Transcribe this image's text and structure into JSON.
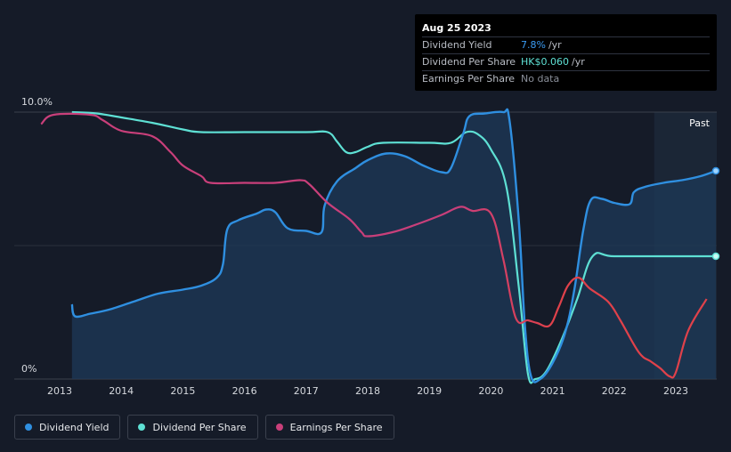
{
  "colors": {
    "background": "#151b28",
    "dividend_yield": "#2f8fe0",
    "dividend_per_share": "#5ee0d4",
    "earnings_per_share": "#c93f7a",
    "earnings_per_share_recent": "#e0414a",
    "grid": "#3a404d"
  },
  "tooltip": {
    "date": "Aug 25 2023",
    "rows": [
      {
        "name": "Dividend Yield",
        "value": "7.8%",
        "unit": "/yr",
        "color": "#3a9af0"
      },
      {
        "name": "Dividend Per Share",
        "value": "HK$0.060",
        "unit": "/yr",
        "color": "#5ee0d4"
      },
      {
        "name": "Earnings Per Share",
        "value": "No data",
        "unit": "",
        "color": "#8a8f99"
      }
    ]
  },
  "legend": [
    {
      "label": "Dividend Yield",
      "color": "#2f8fe0"
    },
    {
      "label": "Dividend Per Share",
      "color": "#5ee0d4"
    },
    {
      "label": "Earnings Per Share",
      "color": "#c93f7a"
    }
  ],
  "chart_data": {
    "type": "line",
    "title": "",
    "xlabel": "",
    "ylabel": "",
    "y_axis_labels": [
      "10.0%",
      "0%"
    ],
    "xlim": [
      2012.2,
      2023.65
    ],
    "ylim": [
      0,
      10
    ],
    "x_ticks": [
      2013,
      2014,
      2015,
      2016,
      2017,
      2018,
      2019,
      2020,
      2021,
      2022,
      2023
    ],
    "past_label": "Past",
    "past_region_start": 2022.65,
    "series": [
      {
        "name": "Dividend Yield",
        "unit": "%",
        "filled": true,
        "points": [
          [
            2013.2,
            2.8
          ],
          [
            2013.25,
            2.35
          ],
          [
            2013.5,
            2.45
          ],
          [
            2013.8,
            2.6
          ],
          [
            2014.2,
            2.9
          ],
          [
            2014.6,
            3.2
          ],
          [
            2015.0,
            3.35
          ],
          [
            2015.3,
            3.5
          ],
          [
            2015.55,
            3.8
          ],
          [
            2015.65,
            4.3
          ],
          [
            2015.72,
            5.6
          ],
          [
            2015.9,
            5.95
          ],
          [
            2016.2,
            6.2
          ],
          [
            2016.35,
            6.35
          ],
          [
            2016.5,
            6.25
          ],
          [
            2016.7,
            5.65
          ],
          [
            2017.0,
            5.55
          ],
          [
            2017.25,
            5.5
          ],
          [
            2017.3,
            6.5
          ],
          [
            2017.5,
            7.4
          ],
          [
            2017.8,
            7.9
          ],
          [
            2018.0,
            8.2
          ],
          [
            2018.3,
            8.45
          ],
          [
            2018.6,
            8.35
          ],
          [
            2018.9,
            8.0
          ],
          [
            2019.2,
            7.75
          ],
          [
            2019.35,
            7.9
          ],
          [
            2019.55,
            9.2
          ],
          [
            2019.65,
            9.85
          ],
          [
            2019.9,
            9.95
          ],
          [
            2020.2,
            10.0
          ],
          [
            2020.3,
            9.7
          ],
          [
            2020.45,
            6.0
          ],
          [
            2020.55,
            2.0
          ],
          [
            2020.65,
            0.1
          ],
          [
            2020.8,
            0.0
          ],
          [
            2021.0,
            0.6
          ],
          [
            2021.2,
            1.7
          ],
          [
            2021.35,
            3.3
          ],
          [
            2021.5,
            5.6
          ],
          [
            2021.62,
            6.7
          ],
          [
            2021.8,
            6.75
          ],
          [
            2022.0,
            6.6
          ],
          [
            2022.25,
            6.55
          ],
          [
            2022.32,
            7.0
          ],
          [
            2022.5,
            7.2
          ],
          [
            2022.8,
            7.35
          ],
          [
            2023.1,
            7.45
          ],
          [
            2023.4,
            7.6
          ],
          [
            2023.65,
            7.8
          ]
        ]
      },
      {
        "name": "Dividend Per Share",
        "unit": "HK$",
        "filled": false,
        "points": [
          [
            2013.2,
            10.0
          ],
          [
            2013.6,
            9.95
          ],
          [
            2014.0,
            9.8
          ],
          [
            2014.5,
            9.6
          ],
          [
            2015.0,
            9.35
          ],
          [
            2015.3,
            9.25
          ],
          [
            2016.0,
            9.25
          ],
          [
            2017.0,
            9.25
          ],
          [
            2017.35,
            9.25
          ],
          [
            2017.5,
            8.9
          ],
          [
            2017.65,
            8.5
          ],
          [
            2017.8,
            8.5
          ],
          [
            2018.0,
            8.7
          ],
          [
            2018.25,
            8.85
          ],
          [
            2019.0,
            8.85
          ],
          [
            2019.35,
            8.85
          ],
          [
            2019.6,
            9.25
          ],
          [
            2019.8,
            9.15
          ],
          [
            2020.0,
            8.6
          ],
          [
            2020.25,
            7.2
          ],
          [
            2020.45,
            3.5
          ],
          [
            2020.6,
            0.2
          ],
          [
            2020.72,
            0.0
          ],
          [
            2020.9,
            0.3
          ],
          [
            2021.15,
            1.5
          ],
          [
            2021.4,
            3.0
          ],
          [
            2021.65,
            4.6
          ],
          [
            2022.0,
            4.6
          ],
          [
            2023.0,
            4.6
          ],
          [
            2023.65,
            4.6
          ]
        ]
      },
      {
        "name": "Earnings Per Share",
        "unit": "HK$",
        "filled": false,
        "points": [
          [
            2012.7,
            9.55
          ],
          [
            2012.9,
            9.9
          ],
          [
            2013.5,
            9.9
          ],
          [
            2013.7,
            9.7
          ],
          [
            2014.0,
            9.3
          ],
          [
            2014.5,
            9.1
          ],
          [
            2014.8,
            8.5
          ],
          [
            2015.0,
            8.0
          ],
          [
            2015.3,
            7.6
          ],
          [
            2015.45,
            7.35
          ],
          [
            2016.0,
            7.35
          ],
          [
            2016.5,
            7.35
          ],
          [
            2016.9,
            7.45
          ],
          [
            2017.05,
            7.3
          ],
          [
            2017.35,
            6.6
          ],
          [
            2017.7,
            6.0
          ],
          [
            2017.9,
            5.5
          ],
          [
            2018.0,
            5.35
          ],
          [
            2018.4,
            5.5
          ],
          [
            2018.8,
            5.8
          ],
          [
            2019.2,
            6.15
          ],
          [
            2019.5,
            6.45
          ],
          [
            2019.7,
            6.3
          ],
          [
            2020.0,
            6.2
          ],
          [
            2020.2,
            4.5
          ],
          [
            2020.4,
            2.3
          ],
          [
            2020.6,
            2.2
          ],
          [
            2020.75,
            2.1
          ],
          [
            2020.95,
            2.0
          ],
          [
            2021.1,
            2.7
          ],
          [
            2021.25,
            3.5
          ],
          [
            2021.42,
            3.8
          ],
          [
            2021.6,
            3.4
          ],
          [
            2021.9,
            2.9
          ],
          [
            2022.1,
            2.2
          ],
          [
            2022.4,
            1.0
          ],
          [
            2022.6,
            0.65
          ],
          [
            2022.75,
            0.4
          ],
          [
            2022.9,
            0.1
          ],
          [
            2023.0,
            0.25
          ],
          [
            2023.2,
            1.8
          ],
          [
            2023.5,
            3.0
          ]
        ]
      }
    ]
  }
}
